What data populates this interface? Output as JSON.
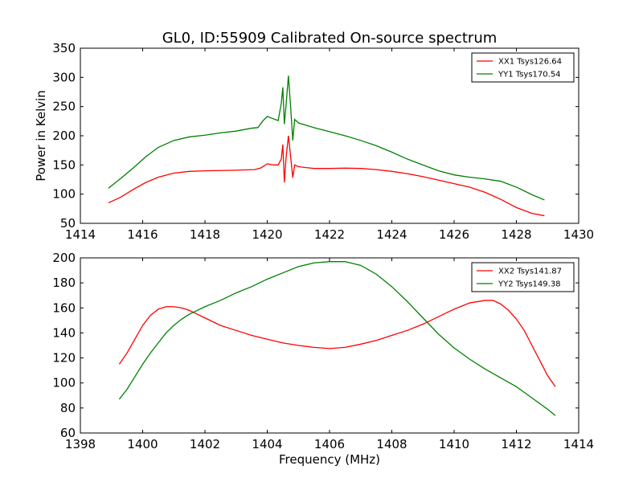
{
  "title": "GL0, ID:55909 Calibrated On-source spectrum",
  "colors": {
    "xx": "#ff0000",
    "yy": "#008000"
  },
  "chart_data": [
    {
      "type": "line",
      "xlim": [
        1414,
        1430
      ],
      "ylim": [
        50,
        350
      ],
      "xticks": [
        1414,
        1416,
        1418,
        1420,
        1422,
        1424,
        1426,
        1428,
        1430
      ],
      "yticks": [
        50,
        100,
        150,
        200,
        250,
        300,
        350
      ],
      "xlabel": "",
      "ylabel": "Power in Kelvin",
      "legend_loc": "top-right",
      "grid": false,
      "series": [
        {
          "name": "XX1 Tsys126.64",
          "color": "#ff0000",
          "points": [
            [
              1414.9,
              85
            ],
            [
              1415.3,
              95
            ],
            [
              1415.7,
              108
            ],
            [
              1416.1,
              120
            ],
            [
              1416.5,
              129
            ],
            [
              1417.0,
              136
            ],
            [
              1417.5,
              139
            ],
            [
              1418.0,
              140
            ],
            [
              1418.5,
              140.5
            ],
            [
              1419.0,
              141
            ],
            [
              1419.6,
              142
            ],
            [
              1419.8,
              145
            ],
            [
              1420.0,
              152
            ],
            [
              1420.2,
              150
            ],
            [
              1420.35,
              150
            ],
            [
              1420.45,
              160
            ],
            [
              1420.5,
              185
            ],
            [
              1420.55,
              120
            ],
            [
              1420.6,
              160
            ],
            [
              1420.68,
              200
            ],
            [
              1420.75,
              165
            ],
            [
              1420.82,
              128
            ],
            [
              1420.88,
              150
            ],
            [
              1421.0,
              147
            ],
            [
              1421.5,
              144
            ],
            [
              1422.0,
              144
            ],
            [
              1422.5,
              144.5
            ],
            [
              1423.0,
              144
            ],
            [
              1423.5,
              142
            ],
            [
              1424.0,
              139
            ],
            [
              1424.5,
              135
            ],
            [
              1425.0,
              130
            ],
            [
              1425.5,
              124
            ],
            [
              1426.0,
              118
            ],
            [
              1426.5,
              112
            ],
            [
              1427.0,
              103
            ],
            [
              1427.5,
              91
            ],
            [
              1428.0,
              77
            ],
            [
              1428.5,
              67
            ],
            [
              1428.9,
              63
            ]
          ]
        },
        {
          "name": "YY1 Tsys170.54",
          "color": "#008000",
          "points": [
            [
              1414.9,
              110
            ],
            [
              1415.3,
              127
            ],
            [
              1415.7,
              145
            ],
            [
              1416.1,
              164
            ],
            [
              1416.5,
              180
            ],
            [
              1417.0,
              192
            ],
            [
              1417.5,
              198
            ],
            [
              1418.0,
              201
            ],
            [
              1418.5,
              205
            ],
            [
              1419.0,
              208
            ],
            [
              1419.5,
              213
            ],
            [
              1419.7,
              214
            ],
            [
              1419.85,
              225
            ],
            [
              1420.0,
              233
            ],
            [
              1420.15,
              230
            ],
            [
              1420.35,
              226
            ],
            [
              1420.45,
              255
            ],
            [
              1420.5,
              283
            ],
            [
              1420.55,
              220
            ],
            [
              1420.6,
              250
            ],
            [
              1420.68,
              303
            ],
            [
              1420.75,
              250
            ],
            [
              1420.82,
              192
            ],
            [
              1420.88,
              228
            ],
            [
              1421.0,
              222
            ],
            [
              1421.5,
              214
            ],
            [
              1422.0,
              207
            ],
            [
              1422.5,
              200
            ],
            [
              1423.0,
              192
            ],
            [
              1423.5,
              183
            ],
            [
              1424.0,
              172
            ],
            [
              1424.5,
              160
            ],
            [
              1425.0,
              150
            ],
            [
              1425.5,
              140
            ],
            [
              1426.0,
              133
            ],
            [
              1426.5,
              129
            ],
            [
              1427.0,
              126
            ],
            [
              1427.5,
              122
            ],
            [
              1428.0,
              112
            ],
            [
              1428.5,
              99
            ],
            [
              1428.9,
              90
            ]
          ]
        }
      ]
    },
    {
      "type": "line",
      "xlim": [
        1398,
        1414
      ],
      "ylim": [
        60,
        200
      ],
      "xticks": [
        1398,
        1400,
        1402,
        1404,
        1406,
        1408,
        1410,
        1412,
        1414
      ],
      "yticks": [
        60,
        80,
        100,
        120,
        140,
        160,
        180,
        200
      ],
      "xlabel": "Frequency (MHz)",
      "ylabel": "",
      "legend_loc": "top-right",
      "grid": false,
      "series": [
        {
          "name": "XX2 Tsys141.87",
          "color": "#ff0000",
          "points": [
            [
              1399.25,
              115
            ],
            [
              1399.5,
              124
            ],
            [
              1399.75,
              135
            ],
            [
              1400.0,
              146
            ],
            [
              1400.25,
              154
            ],
            [
              1400.5,
              159
            ],
            [
              1400.75,
              161
            ],
            [
              1401.0,
              161
            ],
            [
              1401.25,
              160
            ],
            [
              1401.5,
              158
            ],
            [
              1401.75,
              155
            ],
            [
              1402.0,
              152
            ],
            [
              1402.5,
              146
            ],
            [
              1403.0,
              142
            ],
            [
              1403.5,
              138
            ],
            [
              1404.0,
              135
            ],
            [
              1404.5,
              132
            ],
            [
              1405.0,
              130
            ],
            [
              1405.5,
              128.5
            ],
            [
              1406.0,
              127.5
            ],
            [
              1406.5,
              128.5
            ],
            [
              1407.0,
              131
            ],
            [
              1407.5,
              134
            ],
            [
              1408.0,
              138
            ],
            [
              1408.5,
              142
            ],
            [
              1409.0,
              147
            ],
            [
              1409.5,
              153
            ],
            [
              1410.0,
              159
            ],
            [
              1410.5,
              164
            ],
            [
              1411.0,
              166
            ],
            [
              1411.25,
              166
            ],
            [
              1411.5,
              163
            ],
            [
              1411.75,
              158
            ],
            [
              1412.0,
              151
            ],
            [
              1412.25,
              142
            ],
            [
              1412.5,
              130
            ],
            [
              1412.75,
              118
            ],
            [
              1413.0,
              106
            ],
            [
              1413.25,
              97
            ]
          ]
        },
        {
          "name": "YY2 Tsys149.38",
          "color": "#008000",
          "points": [
            [
              1399.25,
              87
            ],
            [
              1399.5,
              95
            ],
            [
              1399.75,
              105
            ],
            [
              1400.0,
              115
            ],
            [
              1400.25,
              124
            ],
            [
              1400.5,
              132
            ],
            [
              1400.75,
              140
            ],
            [
              1401.0,
              146
            ],
            [
              1401.25,
              151
            ],
            [
              1401.5,
              155
            ],
            [
              1401.75,
              158
            ],
            [
              1402.0,
              161
            ],
            [
              1402.5,
              166
            ],
            [
              1403.0,
              172
            ],
            [
              1403.5,
              177
            ],
            [
              1404.0,
              183
            ],
            [
              1404.5,
              188
            ],
            [
              1405.0,
              193
            ],
            [
              1405.5,
              196
            ],
            [
              1406.0,
              197
            ],
            [
              1406.5,
              197
            ],
            [
              1407.0,
              194
            ],
            [
              1407.5,
              187
            ],
            [
              1408.0,
              177
            ],
            [
              1408.5,
              165
            ],
            [
              1409.0,
              152
            ],
            [
              1409.5,
              139
            ],
            [
              1410.0,
              128
            ],
            [
              1410.5,
              119
            ],
            [
              1411.0,
              111
            ],
            [
              1411.5,
              104
            ],
            [
              1412.0,
              97
            ],
            [
              1412.5,
              88
            ],
            [
              1413.0,
              79
            ],
            [
              1413.25,
              74
            ]
          ]
        }
      ]
    }
  ]
}
